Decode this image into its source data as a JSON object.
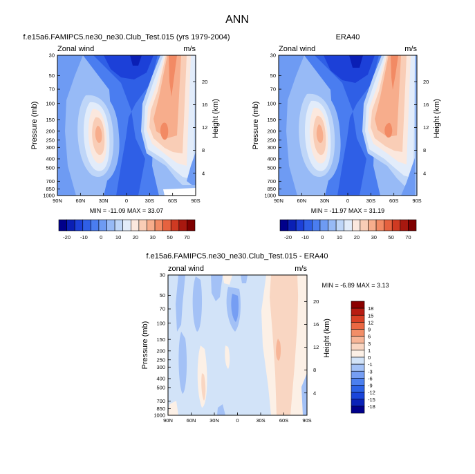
{
  "figure": {
    "title": "ANN",
    "ticks_lat": [
      "90N",
      "60N",
      "30N",
      "0",
      "30S",
      "60S",
      "90S"
    ],
    "ticks_p": [
      "30",
      "50",
      "70",
      "100",
      "150",
      "200",
      "250",
      "300",
      "400",
      "500",
      "700",
      "850",
      "1000"
    ],
    "ticks_h": [
      "20",
      "16",
      "12",
      "8",
      "4"
    ],
    "ylabel": "Pressure (mb)",
    "ylabel_right": "Height (km)"
  },
  "chart_data": [
    {
      "type": "heatmap",
      "title": "f.e15a6.FAMIPC5.ne30_ne30.Club_Test.015 (yrs 1979-2004)",
      "left_label": "Zonal wind",
      "right_label": "m/s",
      "x": [
        "90N",
        "60N",
        "30N",
        "0",
        "30S",
        "60S",
        "90S"
      ],
      "y": [
        30,
        50,
        70,
        100,
        150,
        200,
        250,
        300,
        400,
        500,
        700,
        850,
        1000
      ],
      "stats": "MIN = -11.09  MAX = 33.07",
      "min": -11.09,
      "max": 33.07,
      "legend_levels": [
        "-20",
        "-10",
        "0",
        "10",
        "20",
        "30",
        "50",
        "70"
      ]
    },
    {
      "type": "heatmap",
      "title": "ERA40",
      "left_label": "Zonal wind",
      "right_label": "m/s",
      "x": [
        "90N",
        "60N",
        "30N",
        "0",
        "30S",
        "60S",
        "90S"
      ],
      "y": [
        30,
        50,
        70,
        100,
        150,
        200,
        250,
        300,
        400,
        500,
        700,
        850,
        1000
      ],
      "stats": "MIN = -11.97  MAX =  31.19",
      "min": -11.97,
      "max": 31.19,
      "legend_levels": [
        "-20",
        "-10",
        "0",
        "10",
        "20",
        "30",
        "50",
        "70"
      ]
    },
    {
      "type": "heatmap",
      "title": "f.e15a6.FAMIPC5.ne30_ne30.Club_Test.015 - ERA40",
      "left_label": "zonal wind",
      "right_label": "m/s",
      "x": [
        "90N",
        "60N",
        "30N",
        "0",
        "30S",
        "60S",
        "90S"
      ],
      "y": [
        30,
        50,
        70,
        100,
        150,
        200,
        250,
        300,
        400,
        500,
        700,
        850,
        1000
      ],
      "stats": "MIN = -6.89  MAX =  3.13",
      "min": -6.89,
      "max": 3.13,
      "legend_levels": [
        "18",
        "15",
        "12",
        "9",
        "6",
        "3",
        "1",
        "0",
        "-1",
        "-3",
        "-6",
        "-9",
        "-12",
        "-15",
        "-18"
      ]
    }
  ],
  "colors": {
    "full_palette": [
      "#00008b",
      "#0a1fb5",
      "#1c40d8",
      "#2f5fe6",
      "#4a7df0",
      "#6e9bf3",
      "#97baf6",
      "#bfd6f8",
      "#e2ecfa",
      "#fbe8de",
      "#f9cdb6",
      "#f7ad8c",
      "#f28a64",
      "#e6623f",
      "#cf3a22",
      "#a8180f",
      "#7f0000"
    ],
    "diff_palette": [
      "#00008b",
      "#0a22b8",
      "#1a45da",
      "#2c62e6",
      "#4b7fef",
      "#769ef3",
      "#a3c1f6",
      "#d2e3f8",
      "#fcf0e6",
      "#f9d6c2",
      "#f7b597",
      "#f28e68",
      "#ea6843",
      "#d94025",
      "#b81c12",
      "#8b0000"
    ]
  }
}
